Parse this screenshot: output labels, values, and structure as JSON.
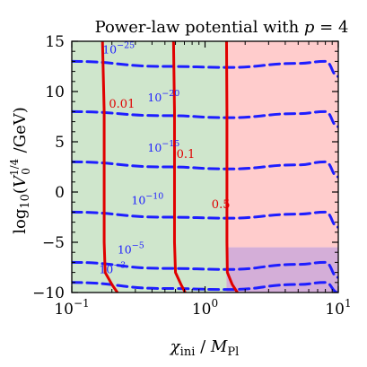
{
  "chart_data": {
    "type": "line",
    "title": "Power-law potential with p = 4",
    "xlabel": "χini / MPl",
    "ylabel": "log10(V0^1/4 / GeV)",
    "xscale": "log",
    "xlim": [
      0.1,
      10
    ],
    "ylim": [
      -10,
      15
    ],
    "x_ticks": [
      "10^-1",
      "10^0",
      "10^1"
    ],
    "y_ticks": [
      "−10",
      "−5",
      "0",
      "5",
      "10",
      "15"
    ],
    "regions": [
      {
        "name": "left",
        "color": "#cfe6cc",
        "x_range": [
          0.1,
          1.45
        ],
        "y_range": [
          -10,
          15
        ]
      },
      {
        "name": "right-upper",
        "color": "#ffcccc",
        "x_range": [
          1.45,
          10
        ],
        "y_range": [
          -5.5,
          15
        ]
      },
      {
        "name": "right-lower",
        "color": "#d4aed8",
        "x_range": [
          1.45,
          10
        ],
        "y_range": [
          -10,
          -5.5
        ]
      }
    ],
    "red_contours": [
      {
        "label": "0.01",
        "color": "#e00000",
        "points": [
          [
            0.17,
            15
          ],
          [
            0.175,
            8
          ],
          [
            0.175,
            -5
          ],
          [
            0.178,
            -8
          ],
          [
            0.2,
            -9.2
          ],
          [
            0.22,
            -10
          ]
        ]
      },
      {
        "label": "0.1",
        "color": "#e00000",
        "points": [
          [
            0.58,
            15
          ],
          [
            0.59,
            8
          ],
          [
            0.59,
            -5
          ],
          [
            0.6,
            -8
          ],
          [
            0.66,
            -9.2
          ],
          [
            0.71,
            -10
          ]
        ]
      },
      {
        "label": "0.5",
        "color": "#e00000",
        "points": [
          [
            1.45,
            15
          ],
          [
            1.46,
            8
          ],
          [
            1.46,
            -5
          ],
          [
            1.47,
            -8
          ],
          [
            1.6,
            -9.2
          ],
          [
            1.75,
            -10
          ]
        ]
      }
    ],
    "blue_contours": [
      {
        "label": "10^-25",
        "color": "#1e1eff",
        "points": [
          [
            0.1,
            13.0
          ],
          [
            0.5,
            12.5
          ],
          [
            1.5,
            12.4
          ],
          [
            5,
            12.8
          ],
          [
            8,
            13
          ],
          [
            10,
            11.5
          ]
        ]
      },
      {
        "label": "10^-20",
        "color": "#1e1eff",
        "points": [
          [
            0.1,
            8.0
          ],
          [
            0.5,
            7.6
          ],
          [
            1.5,
            7.4
          ],
          [
            5,
            7.8
          ],
          [
            8,
            8.0
          ],
          [
            10,
            6.5
          ]
        ]
      },
      {
        "label": "10^-15",
        "color": "#1e1eff",
        "points": [
          [
            0.1,
            3.0
          ],
          [
            0.5,
            2.5
          ],
          [
            1.5,
            2.3
          ],
          [
            5,
            2.7
          ],
          [
            8,
            3.0
          ],
          [
            10,
            1.5
          ]
        ]
      },
      {
        "label": "10^-10",
        "color": "#1e1eff",
        "points": [
          [
            0.1,
            -2.0
          ],
          [
            0.5,
            -2.5
          ],
          [
            1.5,
            -2.6
          ],
          [
            5,
            -2.2
          ],
          [
            8,
            -2.0
          ],
          [
            10,
            -3.5
          ]
        ]
      },
      {
        "label": "10^-5",
        "color": "#1e1eff",
        "points": [
          [
            0.1,
            -7.0
          ],
          [
            0.5,
            -7.6
          ],
          [
            1.5,
            -7.7
          ],
          [
            5,
            -7.2
          ],
          [
            8,
            -7.0
          ],
          [
            10,
            -8.5
          ]
        ]
      },
      {
        "label": "10^-3",
        "color": "#1e1eff",
        "points": [
          [
            0.1,
            -9.0
          ],
          [
            0.5,
            -9.6
          ],
          [
            1.5,
            -9.7
          ],
          [
            5,
            -9.2
          ],
          [
            8,
            -9.0
          ],
          [
            10,
            -10
          ]
        ]
      }
    ],
    "grid": false,
    "legend": "none"
  }
}
